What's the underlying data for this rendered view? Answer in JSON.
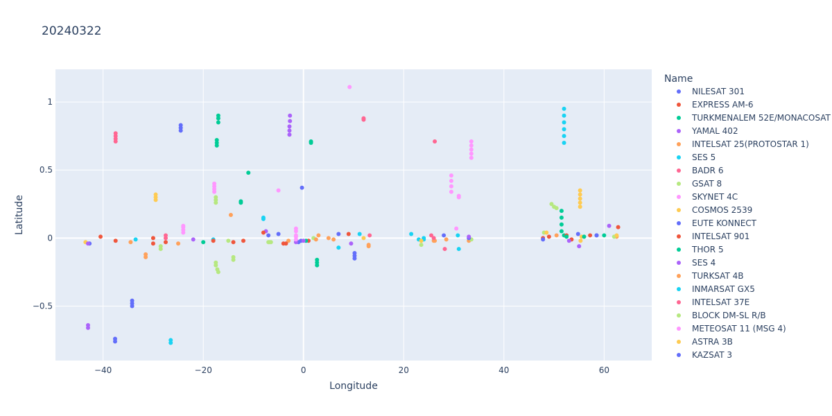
{
  "chart_data": {
    "type": "scatter",
    "title": "20240322",
    "xlabel": "Longitude",
    "ylabel": "Latitude",
    "xlim": [
      -49.5,
      69.5
    ],
    "ylim": [
      -0.9,
      1.24
    ],
    "x_ticks": [
      -40,
      -20,
      0,
      20,
      40,
      60
    ],
    "y_ticks": [
      -0.5,
      0,
      0.5,
      1
    ],
    "x_tick_labels": [
      "−40",
      "−20",
      "0",
      "20",
      "40",
      "60"
    ],
    "y_tick_labels": [
      "−0.5",
      "0",
      "0.5",
      "1"
    ],
    "grid": true,
    "legend_title": "Name",
    "legend_position": "right",
    "series": [
      {
        "name": "NILESAT 301",
        "color": "#636efa",
        "points": [
          [
            -42.7,
            -0.04
          ],
          [
            -34.2,
            -0.46
          ],
          [
            -34.2,
            -0.48
          ],
          [
            -34.2,
            -0.5
          ],
          [
            -37.6,
            -0.74
          ],
          [
            -37.6,
            -0.76
          ],
          [
            -24.5,
            0.79
          ],
          [
            -24.5,
            0.81
          ],
          [
            -24.5,
            0.83
          ],
          [
            -0.3,
            0.37
          ],
          [
            10.2,
            -0.11
          ],
          [
            10.2,
            -0.13
          ],
          [
            10.2,
            -0.15
          ],
          [
            -1.0,
            -0.03
          ],
          [
            58.5,
            0.02
          ]
        ]
      },
      {
        "name": "EXPRESS AM-6",
        "color": "#EF553B",
        "points": [
          [
            -40.5,
            0.01
          ],
          [
            -37.5,
            -0.02
          ],
          [
            -30.0,
            0.0
          ],
          [
            -30.0,
            -0.04
          ],
          [
            -27.5,
            -0.03
          ],
          [
            -14.0,
            -0.03
          ],
          [
            -12.0,
            -0.02
          ],
          [
            -4.0,
            -0.04
          ],
          [
            1.0,
            -0.02
          ],
          [
            9.0,
            0.03
          ],
          [
            47.8,
            0.0
          ],
          [
            49.0,
            0.01
          ],
          [
            53.5,
            -0.01
          ],
          [
            57.2,
            0.02
          ],
          [
            62.8,
            0.08
          ]
        ]
      },
      {
        "name": "TURKMENALEM 52E/MONACOSAT",
        "color": "#00cc96",
        "points": [
          [
            -17.0,
            0.85
          ],
          [
            -17.0,
            0.88
          ],
          [
            -17.0,
            0.9
          ],
          [
            -17.3,
            0.68
          ],
          [
            -17.3,
            0.7
          ],
          [
            -17.3,
            0.72
          ],
          [
            -12.5,
            0.26
          ],
          [
            -12.5,
            0.27
          ],
          [
            -11.0,
            0.48
          ],
          [
            1.5,
            0.7
          ],
          [
            1.5,
            0.71
          ],
          [
            2.7,
            -0.16
          ],
          [
            2.7,
            -0.18
          ],
          [
            2.7,
            -0.2
          ],
          [
            51.5,
            0.05
          ],
          [
            51.5,
            0.1
          ],
          [
            51.5,
            0.15
          ],
          [
            51.5,
            0.2
          ],
          [
            -20.0,
            -0.03
          ],
          [
            0.5,
            -0.02
          ],
          [
            52.0,
            0.02
          ],
          [
            60.0,
            0.02
          ]
        ]
      },
      {
        "name": "YAMAL 402",
        "color": "#ab63fa",
        "points": [
          [
            -43.0,
            -0.64
          ],
          [
            -43.0,
            -0.66
          ],
          [
            -2.8,
            0.76
          ],
          [
            -2.8,
            0.79
          ],
          [
            -2.8,
            0.82
          ],
          [
            -2.7,
            0.86
          ],
          [
            -2.7,
            0.9
          ],
          [
            -22.0,
            -0.01
          ],
          [
            -7.5,
            0.05
          ],
          [
            -1.5,
            -0.03
          ],
          [
            9.5,
            -0.04
          ],
          [
            53.0,
            -0.02
          ],
          [
            55.0,
            -0.06
          ],
          [
            61.0,
            0.09
          ]
        ]
      },
      {
        "name": "INTELSAT 25(PROTOSTAR 1)",
        "color": "#FFA15A",
        "points": [
          [
            -34.5,
            -0.03
          ],
          [
            -31.5,
            -0.12
          ],
          [
            -31.5,
            -0.14
          ],
          [
            -25.0,
            -0.04
          ],
          [
            -14.5,
            0.17
          ],
          [
            -3.0,
            -0.02
          ],
          [
            3.0,
            0.02
          ],
          [
            5.0,
            0.0
          ],
          [
            6.0,
            -0.01
          ],
          [
            13.0,
            -0.05
          ],
          [
            13.0,
            -0.06
          ],
          [
            26.0,
            -0.02
          ],
          [
            28.5,
            -0.01
          ],
          [
            33.0,
            -0.02
          ],
          [
            50.5,
            0.02
          ],
          [
            62.5,
            0.01
          ]
        ]
      },
      {
        "name": "SES 5",
        "color": "#19d3f3",
        "points": [
          [
            -33.5,
            -0.01
          ],
          [
            -26.5,
            -0.75
          ],
          [
            -26.5,
            -0.77
          ],
          [
            -8.0,
            0.14
          ],
          [
            -8.0,
            0.15
          ],
          [
            -18.0,
            -0.01
          ],
          [
            7.0,
            -0.07
          ],
          [
            11.2,
            0.03
          ],
          [
            21.5,
            0.03
          ],
          [
            23.0,
            -0.01
          ],
          [
            24.0,
            0.0
          ],
          [
            30.8,
            0.02
          ],
          [
            31.0,
            -0.08
          ],
          [
            52.0,
            0.7
          ],
          [
            52.0,
            0.75
          ],
          [
            52.0,
            0.8
          ],
          [
            52.0,
            0.85
          ],
          [
            52.0,
            0.9
          ],
          [
            52.0,
            0.95
          ]
        ]
      },
      {
        "name": "BADR 6",
        "color": "#FF6692",
        "points": [
          [
            -37.5,
            0.71
          ],
          [
            -37.5,
            0.73
          ],
          [
            -37.5,
            0.75
          ],
          [
            -37.5,
            0.77
          ],
          [
            -27.5,
            0.0
          ],
          [
            -27.5,
            0.02
          ],
          [
            12.0,
            0.87
          ],
          [
            12.0,
            0.88
          ],
          [
            13.2,
            0.02
          ],
          [
            25.5,
            0.02
          ],
          [
            26.2,
            0.71
          ],
          [
            28.2,
            -0.08
          ]
        ]
      },
      {
        "name": "GSAT 8",
        "color": "#B6E880",
        "points": [
          [
            -28.5,
            -0.06
          ],
          [
            -28.5,
            -0.08
          ],
          [
            -17.5,
            0.26
          ],
          [
            -17.5,
            0.28
          ],
          [
            -17.5,
            0.3
          ],
          [
            -17.5,
            -0.18
          ],
          [
            -17.5,
            -0.2
          ],
          [
            -17.2,
            -0.23
          ],
          [
            -17.0,
            -0.25
          ],
          [
            -15.0,
            -0.02
          ],
          [
            -14.0,
            -0.14
          ],
          [
            -14.0,
            -0.16
          ],
          [
            -7.0,
            -0.03
          ],
          [
            -6.5,
            -0.03
          ],
          [
            2.0,
            0.0
          ],
          [
            23.5,
            -0.05
          ],
          [
            33.5,
            -0.01
          ],
          [
            48.0,
            0.04
          ],
          [
            49.5,
            0.25
          ],
          [
            50.0,
            0.23
          ],
          [
            50.5,
            0.22
          ],
          [
            56.0,
            0.01
          ],
          [
            62.0,
            0.01
          ]
        ]
      },
      {
        "name": "SKYNET 4C",
        "color": "#FF97FF",
        "points": [
          [
            -24.0,
            0.04
          ],
          [
            -24.0,
            0.06
          ],
          [
            -24.0,
            0.08
          ],
          [
            -24.0,
            0.09
          ],
          [
            -17.8,
            0.34
          ],
          [
            -17.8,
            0.36
          ],
          [
            -17.8,
            0.38
          ],
          [
            -17.8,
            0.4
          ],
          [
            -5.0,
            0.35
          ],
          [
            -1.5,
            -0.01
          ],
          [
            -1.5,
            0.02
          ],
          [
            -1.5,
            0.05
          ],
          [
            -1.5,
            0.07
          ],
          [
            9.2,
            1.11
          ],
          [
            29.5,
            0.34
          ],
          [
            29.5,
            0.38
          ],
          [
            29.5,
            0.42
          ],
          [
            29.5,
            0.46
          ],
          [
            30.5,
            0.07
          ],
          [
            31.0,
            0.3
          ],
          [
            31.0,
            0.31
          ],
          [
            33.5,
            0.59
          ],
          [
            33.5,
            0.62
          ],
          [
            33.5,
            0.65
          ],
          [
            33.5,
            0.68
          ],
          [
            33.5,
            0.71
          ]
        ]
      },
      {
        "name": "COSMOS 2539",
        "color": "#FECB52",
        "points": [
          [
            -43.5,
            -0.03
          ],
          [
            -29.5,
            0.28
          ],
          [
            -29.5,
            0.3
          ],
          [
            -29.5,
            0.32
          ],
          [
            12.0,
            0.0
          ],
          [
            48.5,
            0.04
          ],
          [
            55.2,
            0.23
          ],
          [
            55.2,
            0.26
          ],
          [
            55.2,
            0.29
          ],
          [
            55.2,
            0.32
          ],
          [
            55.2,
            0.35
          ],
          [
            55.3,
            -0.02
          ],
          [
            55.5,
            0.01
          ],
          [
            62.5,
            0.02
          ]
        ]
      },
      {
        "name": "EUTE KONNECT",
        "color": "#636efa",
        "points": [
          [
            -7.0,
            0.02
          ],
          [
            -5.0,
            0.03
          ],
          [
            -0.5,
            -0.02
          ],
          [
            7.0,
            0.03
          ],
          [
            28.0,
            0.02
          ],
          [
            33.0,
            0.0
          ],
          [
            47.8,
            -0.01
          ],
          [
            54.8,
            0.03
          ],
          [
            58.5,
            0.02
          ]
        ]
      },
      {
        "name": "INTELSAT 901",
        "color": "#EF553B",
        "points": [
          [
            -18.0,
            -0.02
          ],
          [
            -8.0,
            0.04
          ],
          [
            -3.5,
            -0.04
          ],
          [
            52.5,
            0.02
          ]
        ]
      },
      {
        "name": "THOR 5",
        "color": "#00cc96",
        "points": [
          [
            52.5,
            0.01
          ],
          [
            56.0,
            0.01
          ]
        ]
      },
      {
        "name": "SES 4",
        "color": "#ab63fa",
        "points": [
          [
            -43.0,
            -0.04
          ],
          [
            0.0,
            -0.02
          ],
          [
            33.0,
            0.01
          ]
        ]
      },
      {
        "name": "TURKSAT 4B",
        "color": "#FFA15A",
        "points": [
          [
            2.5,
            -0.01
          ],
          [
            26.2,
            -0.02
          ]
        ]
      },
      {
        "name": "INMARSAT GX5",
        "color": "#19d3f3",
        "points": [
          [
            24.0,
            -0.01
          ]
        ]
      },
      {
        "name": "INTELSAT 37E",
        "color": "#FF6692",
        "points": [
          [
            26.0,
            0.0
          ]
        ]
      },
      {
        "name": "BLOCK DM-SL R/B",
        "color": "#B6E880",
        "points": [
          [
            -6.8,
            -0.03
          ]
        ]
      },
      {
        "name": "METEOSAT 11 (MSG 4)",
        "color": "#FF97FF",
        "points": [
          [
            -1.5,
            0.01
          ]
        ]
      },
      {
        "name": "ASTRA 3B",
        "color": "#FECB52",
        "points": [
          [
            23.5,
            -0.02
          ]
        ]
      },
      {
        "name": "KAZSAT 3",
        "color": "#636efa",
        "points": [
          [
            58.5,
            0.02
          ]
        ]
      }
    ]
  }
}
